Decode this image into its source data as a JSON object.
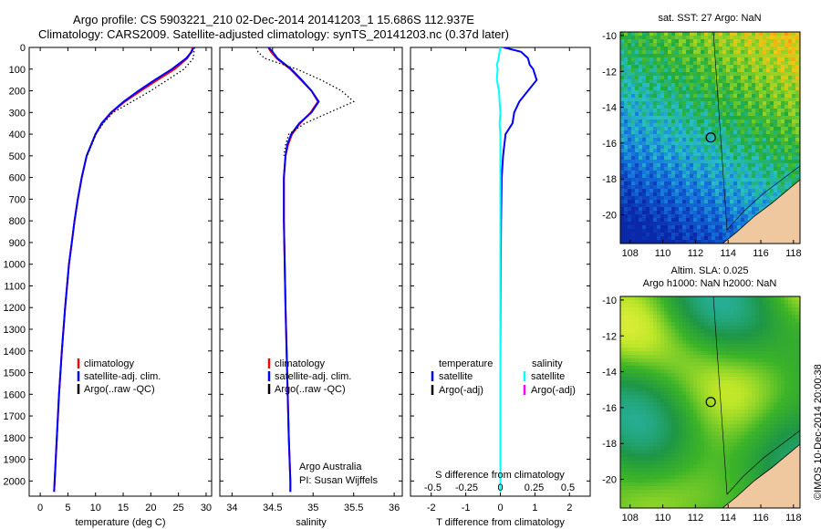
{
  "header": {
    "line1": "Argo profile: CS 5903221_210 02-Dec-2014 20141203_1 15.686S 112.937E",
    "line2": "Climatology: CARS2009. Satellite-adjusted climatology: synTS_20141203.nc (0.37d later)"
  },
  "stamp": "©IMOS 10-Dec-2014 20:00:38",
  "colors": {
    "climatology": "#ff0000",
    "satellite": "#0000ff",
    "argo": "#000000",
    "sal_satellite": "#00ffff",
    "sal_argo": "#ff00ff"
  },
  "panels": {
    "depth_ticks": [
      "0",
      "100",
      "200",
      "300",
      "400",
      "500",
      "600",
      "700",
      "800",
      "900",
      "1000",
      "1100",
      "1200",
      "1300",
      "1400",
      "1500",
      "1600",
      "1700",
      "1800",
      "1900",
      "2000"
    ],
    "temperature": {
      "xlabel": "temperature (deg C)",
      "xticks": [
        "0",
        "5",
        "10",
        "15",
        "20",
        "25",
        "30"
      ],
      "legend": [
        "climatology",
        "satellite-adj. clim.",
        "Argo(..raw -QC)"
      ]
    },
    "salinity": {
      "xlabel": "salinity",
      "xticks": [
        "34",
        "34.5",
        "35",
        "35.5",
        "36"
      ],
      "legend": [
        "climatology",
        "satellite-adj. clim.",
        "Argo(..raw -QC)"
      ],
      "note1": "Argo Australia",
      "note2": "PI: Susan Wijffels"
    },
    "difference": {
      "xlabel": "T difference from climatology",
      "top_label": "S difference from climatology",
      "xticks_bottom": [
        "-2",
        "-1",
        "0",
        "1",
        "2"
      ],
      "xticks_top": [
        "-0.5",
        "-0.25",
        "0",
        "0.25",
        "0.5"
      ],
      "legend_t_title": "temperature",
      "legend_t": [
        "satellite",
        "Argo(-adj)"
      ],
      "legend_s_title": "salinity",
      "legend_s": [
        "satellite",
        "Argo(-adj)"
      ]
    }
  },
  "maps": {
    "sst_title": "sat. SST: 27 Argo: NaN",
    "sla_title1": "Altim. SLA: 0.025",
    "sla_title2": "Argo h1000: NaN h2000: NaN",
    "lon_ticks": [
      "108",
      "110",
      "112",
      "114",
      "116",
      "118"
    ],
    "lat_ticks": [
      "-10",
      "-12",
      "-14",
      "-16",
      "-18",
      "-20"
    ]
  },
  "chart_data": [
    {
      "type": "line",
      "title": "",
      "xlabel": "temperature (deg C)",
      "ylabel": "",
      "xlim": [
        -2,
        31
      ],
      "ylim": [
        2070,
        0
      ],
      "grid": false,
      "legend_position": "lower-middle",
      "y": [
        0,
        20,
        50,
        100,
        150,
        200,
        250,
        300,
        350,
        400,
        500,
        600,
        700,
        800,
        900,
        1000,
        1200,
        1400,
        1600,
        1800,
        2000,
        2050
      ],
      "series": [
        {
          "name": "climatology",
          "values": [
            27.6,
            27.3,
            26.6,
            24.3,
            21.2,
            18.2,
            15.3,
            12.9,
            11.2,
            10.0,
            8.4,
            7.5,
            6.8,
            6.2,
            5.7,
            5.2,
            4.5,
            3.9,
            3.4,
            3.0,
            2.6,
            2.5
          ]
        },
        {
          "name": "satellite-adj. clim.",
          "values": [
            27.7,
            27.4,
            26.4,
            23.8,
            20.7,
            17.8,
            15.1,
            12.8,
            11.1,
            10.0,
            8.4,
            7.5,
            6.8,
            6.2,
            5.7,
            5.2,
            4.5,
            3.9,
            3.4,
            3.0,
            2.6,
            2.5
          ]
        },
        {
          "name": "Argo(..raw -QC)",
          "values": [
            27.9,
            27.8,
            27.7,
            26.0,
            23.0,
            20.0,
            16.6,
            13.2,
            11.4,
            10.1,
            8.5,
            null,
            null,
            null,
            null,
            null,
            null,
            null,
            null,
            null,
            null,
            null
          ]
        }
      ]
    },
    {
      "type": "line",
      "title": "",
      "xlabel": "salinity",
      "ylabel": "",
      "xlim": [
        33.85,
        36.1
      ],
      "ylim": [
        2070,
        0
      ],
      "grid": false,
      "legend_position": "lower-middle",
      "y": [
        0,
        20,
        50,
        100,
        150,
        200,
        250,
        300,
        350,
        400,
        450,
        500,
        600,
        800,
        1000,
        1200,
        1500,
        1800,
        2000,
        2050
      ],
      "series": [
        {
          "name": "climatology",
          "values": [
            34.45,
            34.48,
            34.55,
            34.72,
            34.85,
            34.98,
            35.06,
            34.97,
            34.84,
            34.74,
            34.69,
            34.66,
            34.64,
            34.64,
            34.65,
            34.66,
            34.68,
            34.7,
            34.72,
            34.72
          ]
        },
        {
          "name": "satellite-adj. clim.",
          "values": [
            34.45,
            34.5,
            34.56,
            34.73,
            34.86,
            34.98,
            35.07,
            34.98,
            34.83,
            34.73,
            34.68,
            34.66,
            34.64,
            34.64,
            34.65,
            34.66,
            34.68,
            34.7,
            34.72,
            34.72
          ]
        },
        {
          "name": "Argo(..raw -QC)",
          "values": [
            34.3,
            34.32,
            34.4,
            34.8,
            35.1,
            35.35,
            35.5,
            35.2,
            34.9,
            34.7,
            34.66,
            34.64,
            null,
            null,
            null,
            null,
            null,
            null,
            null,
            null
          ]
        }
      ]
    },
    {
      "type": "line",
      "title": "",
      "xlabel": "T difference from climatology",
      "ylabel": "",
      "xlim": [
        -2.6,
        2.6
      ],
      "ylim": [
        2070,
        0
      ],
      "grid": false,
      "legend_position": "lower-middle",
      "y": [
        0,
        20,
        50,
        80,
        100,
        150,
        200,
        250,
        300,
        350,
        400,
        500,
        600,
        800,
        1000,
        1500,
        2000,
        2050
      ],
      "series": [
        {
          "name": "satellite (temperature)",
          "values": [
            0.1,
            0.6,
            0.8,
            0.85,
            0.95,
            1.05,
            0.8,
            0.55,
            0.4,
            0.35,
            0.15,
            0.08,
            0.04,
            0.02,
            0.01,
            0.0,
            0.0,
            0.0
          ]
        },
        {
          "name": "satellite (salinity)",
          "values": [
            0.0,
            -0.02,
            -0.05,
            -0.1,
            -0.08,
            -0.1,
            -0.04,
            -0.02,
            0.0,
            -0.02,
            0.0,
            0.0,
            0.0,
            0.0,
            0.0,
            0.0,
            0.0,
            0.0
          ]
        }
      ]
    }
  ]
}
